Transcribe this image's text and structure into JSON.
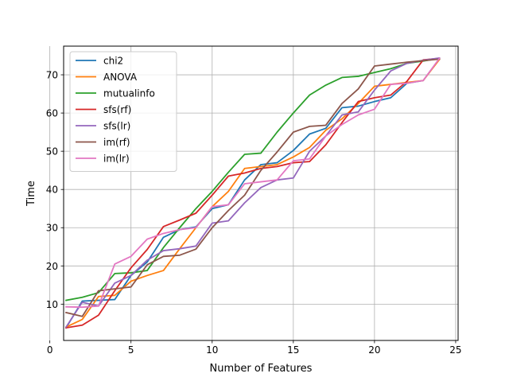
{
  "chart_data": {
    "type": "line",
    "title": "",
    "xlabel": "Number of Features",
    "ylabel": "Time",
    "xlim": [
      0.85,
      25.15
    ],
    "ylim": [
      0.5,
      77.5
    ],
    "xticks": [
      0,
      5,
      10,
      15,
      20,
      25
    ],
    "yticks": [
      10,
      20,
      30,
      40,
      50,
      60,
      70
    ],
    "grid": true,
    "legend_position": "upper-left",
    "x": [
      1,
      2,
      3,
      4,
      5,
      6,
      7,
      8,
      9,
      10,
      11,
      12,
      13,
      14,
      15,
      16,
      17,
      18,
      19,
      20,
      21,
      22,
      23,
      24
    ],
    "series": [
      {
        "name": "chi2",
        "color": "#1f77b4",
        "values": [
          3.8,
          10.8,
          11.0,
          11.2,
          17.5,
          21.0,
          27.5,
          29.5,
          30.2,
          35.0,
          36.0,
          42.5,
          46.5,
          47.0,
          50.2,
          54.5,
          56.0,
          61.4,
          61.8,
          63.0,
          64.0,
          67.8,
          68.5,
          74.2
        ]
      },
      {
        "name": "ANOVA",
        "color": "#ff7f0e",
        "values": [
          4.0,
          6.0,
          12.0,
          12.3,
          16.0,
          17.5,
          18.8,
          24.5,
          30.0,
          35.5,
          39.5,
          45.5,
          46.0,
          46.5,
          48.5,
          51.0,
          55.5,
          58.5,
          62.5,
          67.0,
          67.5,
          68.0,
          68.5,
          74.0
        ]
      },
      {
        "name": "mutualinfo",
        "color": "#2ca02c",
        "values": [
          11.0,
          11.8,
          13.0,
          18.0,
          18.2,
          18.8,
          24.8,
          30.0,
          35.0,
          39.5,
          44.5,
          49.2,
          49.5,
          55.0,
          60.0,
          64.7,
          67.3,
          69.3,
          69.6,
          70.6,
          71.6,
          73.0,
          73.6,
          74.3
        ]
      },
      {
        "name": "sfs(rf)",
        "color": "#d62728",
        "values": [
          3.8,
          4.5,
          7.1,
          13.5,
          19.5,
          24.3,
          30.3,
          32.0,
          33.8,
          38.5,
          43.5,
          44.3,
          45.5,
          46.0,
          47.0,
          47.3,
          51.7,
          57.5,
          63.0,
          64.0,
          64.7,
          68.3,
          73.9,
          74.3
        ]
      },
      {
        "name": "sfs(lr)",
        "color": "#9467bd",
        "values": [
          4.0,
          10.5,
          9.5,
          15.5,
          17.5,
          21.5,
          24.0,
          24.5,
          25.2,
          31.2,
          31.8,
          36.5,
          40.5,
          42.5,
          43.0,
          50.0,
          54.0,
          59.5,
          60.3,
          66.0,
          71.0,
          73.0,
          73.8,
          74.4
        ]
      },
      {
        "name": "im(rf)",
        "color": "#8c564b",
        "values": [
          7.8,
          6.8,
          13.5,
          14.0,
          14.5,
          20.3,
          22.5,
          22.8,
          24.4,
          30.0,
          34.5,
          38.5,
          45.0,
          49.8,
          55.0,
          56.5,
          56.8,
          62.5,
          66.3,
          72.3,
          72.8,
          73.3,
          73.7,
          74.1
        ]
      },
      {
        "name": "im(lr)",
        "color": "#e377c2",
        "values": [
          9.3,
          9.2,
          9.5,
          20.5,
          22.5,
          27.0,
          28.5,
          29.5,
          30.0,
          35.5,
          36.0,
          41.5,
          42.0,
          42.5,
          47.5,
          48.0,
          54.0,
          57.0,
          59.5,
          61.0,
          67.5,
          67.8,
          68.5,
          74.3
        ]
      }
    ]
  }
}
